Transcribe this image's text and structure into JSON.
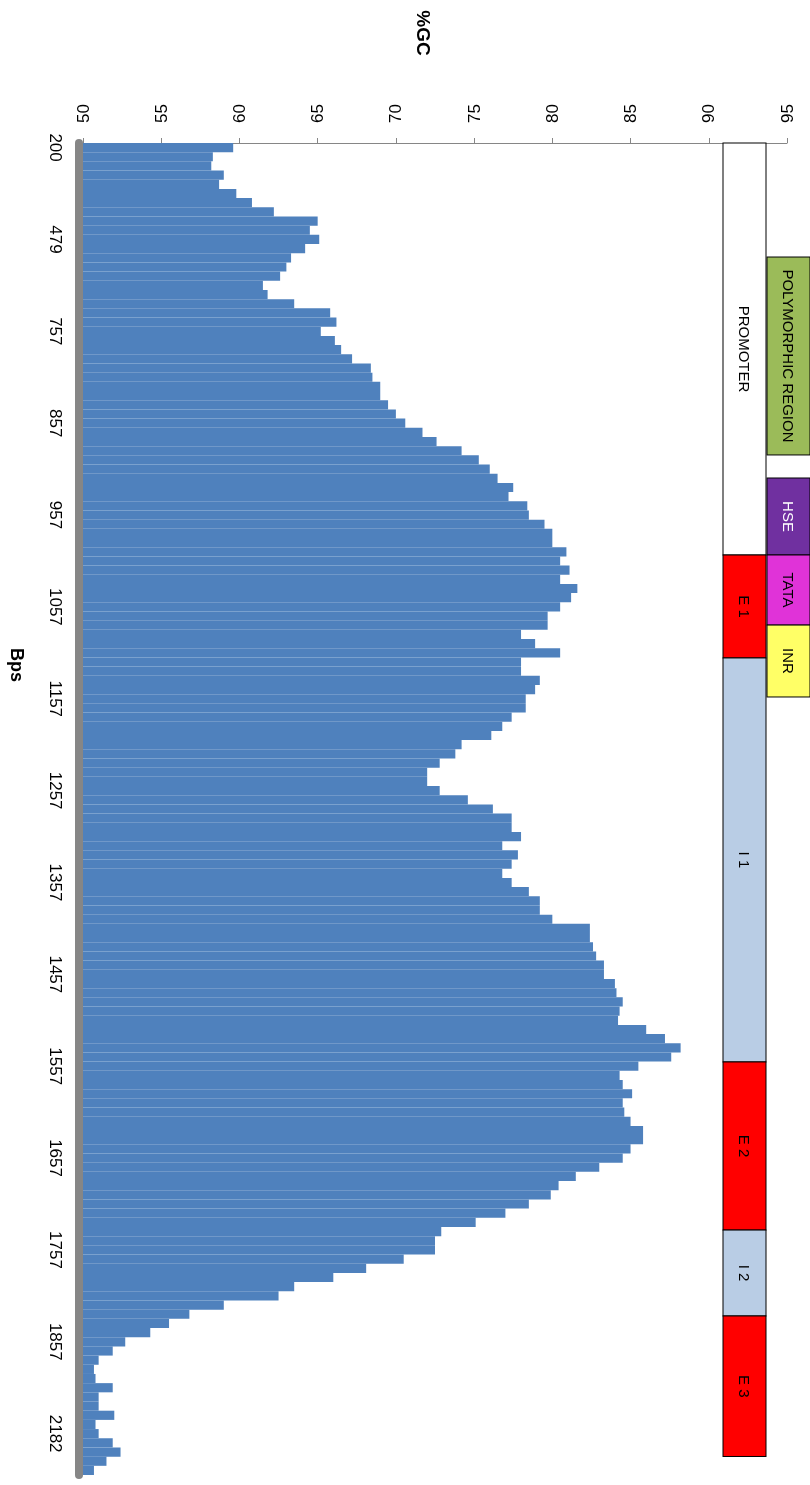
{
  "chart_data": {
    "type": "bar",
    "orientation": "horizontal",
    "title": "%GC",
    "ylabel": "Bps",
    "color": "#4f81bd",
    "grid": false,
    "xlim": [
      50,
      95
    ],
    "xticks": [
      50,
      55,
      60,
      65,
      70,
      75,
      80,
      85,
      90,
      95
    ],
    "categories": [
      "200",
      null,
      null,
      null,
      null,
      null,
      null,
      null,
      null,
      null,
      "479",
      null,
      null,
      null,
      null,
      null,
      null,
      null,
      null,
      null,
      "757",
      null,
      null,
      null,
      null,
      null,
      null,
      null,
      null,
      null,
      "857",
      null,
      null,
      null,
      null,
      null,
      null,
      null,
      null,
      null,
      "957",
      null,
      null,
      null,
      null,
      null,
      null,
      null,
      null,
      null,
      "1057",
      null,
      null,
      null,
      null,
      null,
      null,
      null,
      null,
      null,
      "1157",
      null,
      null,
      null,
      null,
      null,
      null,
      null,
      null,
      null,
      "1257",
      null,
      null,
      null,
      null,
      null,
      null,
      null,
      null,
      null,
      "1357",
      null,
      null,
      null,
      null,
      null,
      null,
      null,
      null,
      null,
      "1457",
      null,
      null,
      null,
      null,
      null,
      null,
      null,
      null,
      null,
      "1557",
      null,
      null,
      null,
      null,
      null,
      null,
      null,
      null,
      null,
      "1657",
      null,
      null,
      null,
      null,
      null,
      null,
      null,
      null,
      null,
      "1757",
      null,
      null,
      null,
      null,
      null,
      null,
      null,
      null,
      null,
      "1857",
      null,
      null,
      null,
      null,
      null,
      null,
      null,
      null,
      null,
      "2182",
      null,
      null,
      null,
      null
    ],
    "values": [
      59.6,
      58.3,
      58.2,
      59.0,
      58.7,
      59.8,
      60.8,
      62.2,
      65.0,
      64.5,
      65.1,
      64.2,
      63.3,
      63.0,
      62.6,
      61.5,
      61.8,
      63.5,
      65.8,
      66.2,
      65.2,
      66.1,
      66.5,
      67.2,
      68.4,
      68.5,
      69.0,
      69.0,
      69.5,
      70.0,
      70.6,
      71.7,
      72.6,
      74.2,
      75.3,
      76.0,
      76.5,
      77.5,
      77.2,
      78.4,
      78.5,
      79.5,
      80.0,
      80.0,
      80.9,
      80.5,
      81.1,
      80.5,
      81.6,
      81.2,
      80.5,
      79.7,
      79.7,
      78.0,
      78.9,
      80.5,
      78.0,
      78.0,
      79.2,
      78.9,
      78.3,
      78.3,
      77.4,
      76.8,
      76.1,
      74.2,
      73.8,
      72.8,
      72.0,
      72.0,
      72.8,
      74.6,
      76.2,
      77.4,
      77.4,
      78.0,
      76.8,
      77.8,
      77.4,
      76.8,
      77.4,
      78.5,
      79.2,
      79.2,
      80.0,
      82.4,
      82.4,
      82.6,
      82.8,
      83.3,
      83.3,
      84.0,
      84.1,
      84.5,
      84.3,
      84.2,
      86.0,
      87.2,
      88.2,
      87.6,
      85.5,
      84.3,
      84.5,
      85.1,
      84.5,
      84.6,
      85.0,
      85.8,
      85.8,
      85.0,
      84.5,
      83.0,
      81.5,
      80.4,
      79.9,
      78.5,
      77.0,
      75.1,
      72.9,
      72.5,
      72.5,
      70.5,
      68.1,
      66.0,
      63.5,
      62.5,
      59.0,
      56.8,
      55.5,
      54.3,
      52.7,
      51.9,
      51.0,
      50.7,
      50.8,
      51.9,
      51.0,
      51.0,
      52.0,
      50.8,
      51.0,
      51.9,
      52.4,
      51.5,
      50.7
    ],
    "annotations": [
      "PROMOTER",
      "E 1",
      "I 1",
      "E 2",
      "I 2",
      "E 3",
      "POLYMORPHIC REGION",
      "HSE",
      "TATA",
      "INR"
    ]
  }
}
